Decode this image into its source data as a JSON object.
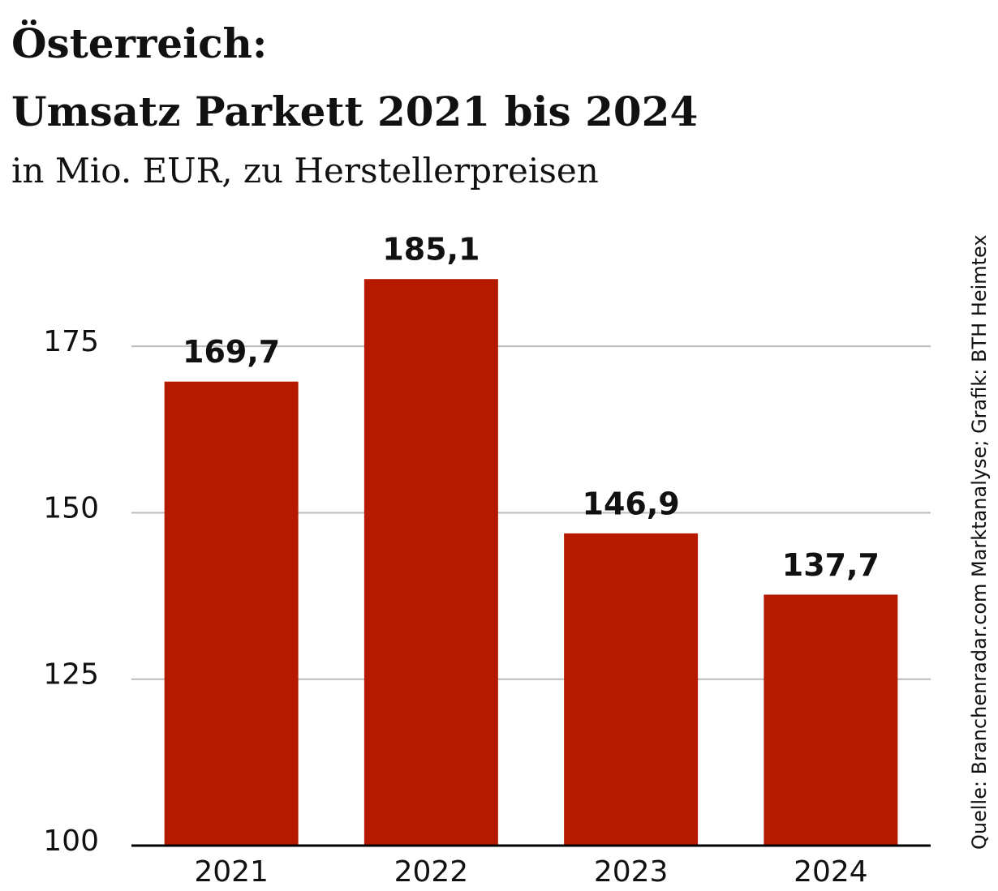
{
  "chart_data": {
    "type": "bar",
    "title": [
      "Österreich:",
      "Umsatz Parkett 2021 bis 2024"
    ],
    "subtitle": "in Mio. EUR, zu Herstellerpreisen",
    "source": "Quelle: Branchenradar.com Marktanalyse; Grafik: BTH Heimtex",
    "categories": [
      "2021",
      "2022",
      "2023",
      "2024"
    ],
    "values": [
      169.7,
      185.1,
      146.9,
      137.7
    ],
    "value_labels": [
      "169,7",
      "185,1",
      "146,9",
      "137,7"
    ],
    "color": "#b51a00",
    "ylim": [
      100,
      190
    ],
    "yticks": [
      100,
      125,
      150,
      175
    ],
    "grid": true
  }
}
